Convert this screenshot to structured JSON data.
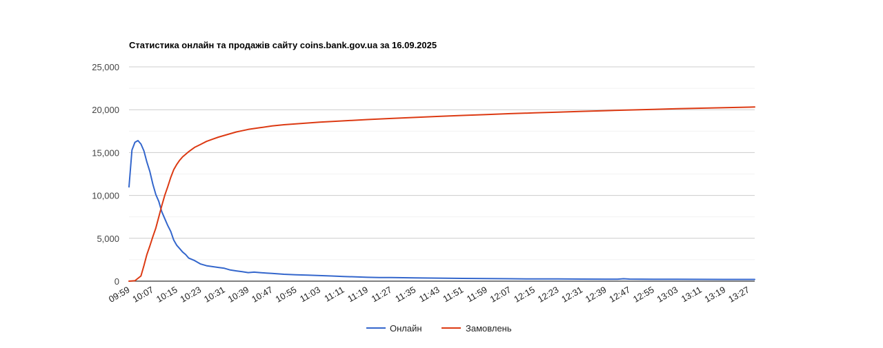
{
  "chart_data": {
    "type": "line",
    "title": "Статистика онлайн та продажів сайту coins.bank.gov.ua за 16.09.2025",
    "xlabel": "",
    "ylabel": "",
    "ylim": [
      0,
      25000
    ],
    "y_ticks": [
      0,
      5000,
      10000,
      15000,
      20000,
      25000
    ],
    "y_tick_labels": [
      "0",
      "5,000",
      "10,000",
      "15,000",
      "20,000",
      "25,000"
    ],
    "x_range": [
      "09:59",
      "13:29"
    ],
    "x_tick_labels": [
      "09:59",
      "10:07",
      "10:15",
      "10:23",
      "10:31",
      "10:39",
      "10:47",
      "10:55",
      "11:03",
      "11:11",
      "11:19",
      "11:27",
      "11:35",
      "11:43",
      "11:51",
      "11:59",
      "12:07",
      "12:15",
      "12:23",
      "12:31",
      "12:39",
      "12:47",
      "12:55",
      "13:03",
      "13:11",
      "13:19",
      "13:27"
    ],
    "grid": true,
    "legend_position": "bottom",
    "series": [
      {
        "name": "Онлайн",
        "color": "#3366cc",
        "points": [
          [
            "09:59",
            11000
          ],
          [
            "10:00",
            15300
          ],
          [
            "10:01",
            16200
          ],
          [
            "10:02",
            16400
          ],
          [
            "10:03",
            16000
          ],
          [
            "10:04",
            15200
          ],
          [
            "10:05",
            13900
          ],
          [
            "10:06",
            12800
          ],
          [
            "10:07",
            11300
          ],
          [
            "10:08",
            10100
          ],
          [
            "10:09",
            9300
          ],
          [
            "10:10",
            8100
          ],
          [
            "10:11",
            7300
          ],
          [
            "10:12",
            6500
          ],
          [
            "10:13",
            5800
          ],
          [
            "10:14",
            4800
          ],
          [
            "10:15",
            4200
          ],
          [
            "10:16",
            3800
          ],
          [
            "10:17",
            3400
          ],
          [
            "10:18",
            3100
          ],
          [
            "10:19",
            2700
          ],
          [
            "10:21",
            2400
          ],
          [
            "10:23",
            2000
          ],
          [
            "10:25",
            1800
          ],
          [
            "10:27",
            1700
          ],
          [
            "10:29",
            1600
          ],
          [
            "10:31",
            1500
          ],
          [
            "10:33",
            1300
          ],
          [
            "10:35",
            1200
          ],
          [
            "10:37",
            1100
          ],
          [
            "10:39",
            1000
          ],
          [
            "10:41",
            1050
          ],
          [
            "10:43",
            1000
          ],
          [
            "10:45",
            950
          ],
          [
            "10:47",
            900
          ],
          [
            "10:49",
            850
          ],
          [
            "10:51",
            800
          ],
          [
            "10:55",
            750
          ],
          [
            "10:59",
            700
          ],
          [
            "11:03",
            650
          ],
          [
            "11:07",
            600
          ],
          [
            "11:11",
            550
          ],
          [
            "11:15",
            500
          ],
          [
            "11:19",
            450
          ],
          [
            "11:23",
            430
          ],
          [
            "11:27",
            420
          ],
          [
            "11:31",
            400
          ],
          [
            "11:35",
            380
          ],
          [
            "11:43",
            350
          ],
          [
            "11:51",
            320
          ],
          [
            "11:59",
            300
          ],
          [
            "12:07",
            280
          ],
          [
            "12:15",
            260
          ],
          [
            "12:23",
            260
          ],
          [
            "12:31",
            240
          ],
          [
            "12:39",
            230
          ],
          [
            "12:43",
            230
          ],
          [
            "12:45",
            280
          ],
          [
            "12:47",
            240
          ],
          [
            "12:55",
            220
          ],
          [
            "13:03",
            220
          ],
          [
            "13:11",
            210
          ],
          [
            "13:19",
            200
          ],
          [
            "13:27",
            200
          ],
          [
            "13:29",
            200
          ]
        ]
      },
      {
        "name": "Замовлень",
        "color": "#dc3912",
        "points": [
          [
            "09:59",
            0
          ],
          [
            "10:01",
            50
          ],
          [
            "10:03",
            600
          ],
          [
            "10:04",
            1800
          ],
          [
            "10:05",
            3100
          ],
          [
            "10:06",
            4100
          ],
          [
            "10:07",
            5200
          ],
          [
            "10:08",
            6200
          ],
          [
            "10:09",
            7500
          ],
          [
            "10:10",
            8800
          ],
          [
            "10:11",
            10000
          ],
          [
            "10:12",
            11000
          ],
          [
            "10:13",
            12100
          ],
          [
            "10:14",
            13000
          ],
          [
            "10:15",
            13600
          ],
          [
            "10:16",
            14100
          ],
          [
            "10:17",
            14500
          ],
          [
            "10:19",
            15100
          ],
          [
            "10:21",
            15600
          ],
          [
            "10:23",
            15950
          ],
          [
            "10:25",
            16300
          ],
          [
            "10:27",
            16550
          ],
          [
            "10:29",
            16800
          ],
          [
            "10:31",
            17000
          ],
          [
            "10:33",
            17200
          ],
          [
            "10:35",
            17400
          ],
          [
            "10:37",
            17550
          ],
          [
            "10:39",
            17700
          ],
          [
            "10:43",
            17900
          ],
          [
            "10:47",
            18100
          ],
          [
            "10:51",
            18250
          ],
          [
            "10:55",
            18350
          ],
          [
            "11:03",
            18550
          ],
          [
            "11:11",
            18700
          ],
          [
            "11:19",
            18850
          ],
          [
            "11:27",
            18980
          ],
          [
            "11:35",
            19100
          ],
          [
            "11:43",
            19220
          ],
          [
            "11:51",
            19330
          ],
          [
            "11:59",
            19440
          ],
          [
            "12:07",
            19540
          ],
          [
            "12:15",
            19630
          ],
          [
            "12:23",
            19720
          ],
          [
            "12:31",
            19810
          ],
          [
            "12:39",
            19890
          ],
          [
            "12:47",
            19970
          ],
          [
            "12:55",
            20040
          ],
          [
            "13:03",
            20110
          ],
          [
            "13:11",
            20180
          ],
          [
            "13:19",
            20240
          ],
          [
            "13:27",
            20300
          ],
          [
            "13:29",
            20320
          ]
        ]
      }
    ]
  }
}
